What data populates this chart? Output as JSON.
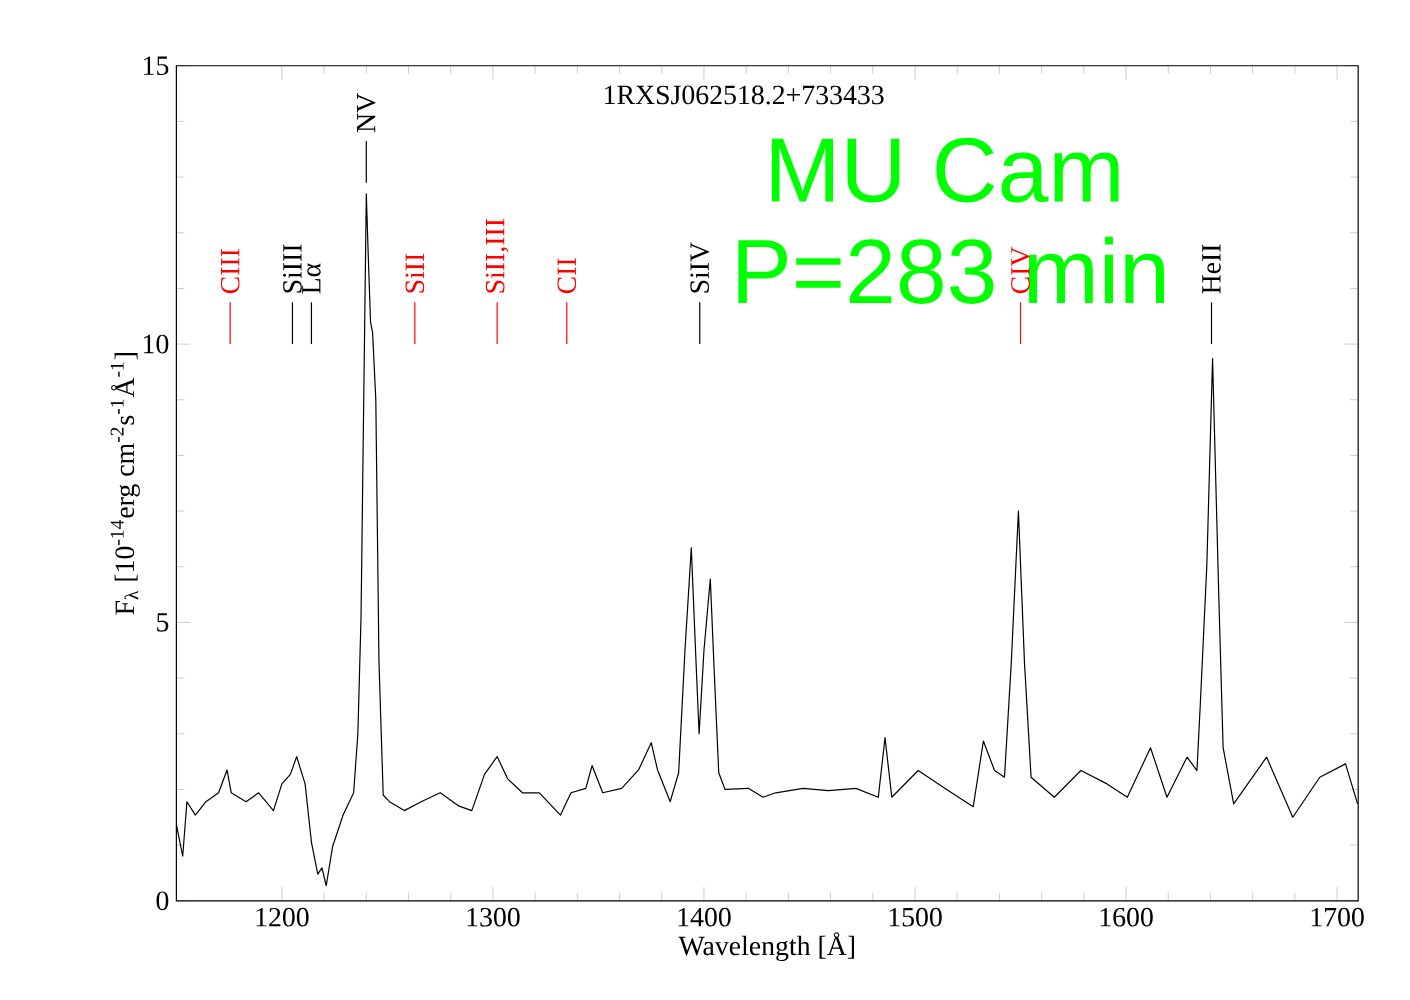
{
  "chart_data": {
    "type": "line",
    "title": "1RXSJ062518.2+733433",
    "xlabel": "Wavelength [Å]",
    "ylabel": "F$_{λ}$ [10$^{-14}$erg cm$^{-2}$s$^{-1}$Å$^{-1}$]",
    "xlim": [
      1150,
      1710
    ],
    "ylim": [
      0,
      15
    ],
    "xticks": [
      1200,
      1300,
      1400,
      1500,
      1600,
      1700
    ],
    "yticks": [
      0,
      5,
      10,
      15
    ],
    "color": "#000000",
    "marker": "none",
    "line_style": "solid",
    "x": [
      1150,
      1153,
      1155,
      1159,
      1164,
      1170,
      1174,
      1176,
      1183,
      1189,
      1196,
      1200,
      1204,
      1207,
      1211,
      1214,
      1217,
      1219,
      1221,
      1224,
      1229,
      1234,
      1236,
      1237.5,
      1240,
      1241,
      1242,
      1243,
      1244.5,
      1246,
      1248,
      1251,
      1258,
      1266,
      1275,
      1284,
      1290,
      1296,
      1302,
      1307,
      1314,
      1322,
      1332,
      1337,
      1344,
      1347,
      1352,
      1361,
      1369,
      1375,
      1378,
      1384,
      1388,
      1391,
      1394,
      1396,
      1397.7,
      1400,
      1403,
      1405,
      1407,
      1410,
      1421,
      1428,
      1434,
      1447,
      1459,
      1472,
      1482.6,
      1485.8,
      1489,
      1501.5,
      1515.7,
      1527.6,
      1532.4,
      1537.7,
      1542.4,
      1545.6,
      1549,
      1551.9,
      1555,
      1566,
      1578.6,
      1591,
      1600.6,
      1611.6,
      1619.4,
      1628.9,
      1633.6,
      1635.2,
      1638.3,
      1641,
      1644,
      1646,
      1651,
      1666.6,
      1679,
      1691.8,
      1704,
      1709.7
    ],
    "values": [
      1.37,
      0.8,
      1.78,
      1.54,
      1.78,
      1.94,
      2.35,
      1.94,
      1.78,
      1.94,
      1.62,
      2.1,
      2.27,
      2.59,
      2.1,
      1.05,
      0.48,
      0.59,
      0.27,
      0.97,
      1.54,
      1.94,
      3.0,
      5.1,
      12.7,
      11.5,
      10.4,
      10.2,
      9.0,
      4.3,
      1.9,
      1.78,
      1.62,
      1.78,
      1.94,
      1.7,
      1.62,
      2.27,
      2.59,
      2.19,
      1.94,
      1.94,
      1.54,
      1.94,
      2.02,
      2.43,
      1.94,
      2.02,
      2.35,
      2.84,
      2.35,
      1.78,
      2.3,
      4.5,
      6.34,
      4.5,
      3.0,
      4.5,
      5.78,
      4.0,
      2.3,
      2.0,
      2.02,
      1.86,
      1.94,
      2.02,
      1.98,
      2.02,
      1.86,
      2.93,
      1.86,
      2.34,
      1.98,
      1.69,
      2.87,
      2.34,
      2.22,
      4.26,
      7.0,
      4.26,
      2.22,
      1.86,
      2.34,
      2.1,
      1.86,
      2.75,
      1.86,
      2.58,
      2.34,
      3.54,
      6.04,
      9.74,
      5.4,
      2.75,
      1.74,
      2.58,
      1.5,
      2.22,
      2.46,
      1.74
    ],
    "ref_lines": [
      {
        "axis": "x",
        "value": 1175.5,
        "label": "CIII",
        "color": "#ff0000"
      },
      {
        "axis": "x",
        "value": 1205,
        "label": "SiIII",
        "color": "#000000"
      },
      {
        "axis": "x",
        "value": 1214,
        "label": "Lα",
        "color": "#000000"
      },
      {
        "axis": "x",
        "value": 1240,
        "label": "NV",
        "color": "#000000"
      },
      {
        "axis": "x",
        "value": 1263,
        "label": "SiII",
        "color": "#ff0000"
      },
      {
        "axis": "x",
        "value": 1302,
        "label": "SiII,III",
        "color": "#ff0000"
      },
      {
        "axis": "x",
        "value": 1335,
        "label": "CII",
        "color": "#ff0000"
      },
      {
        "axis": "x",
        "value": 1398,
        "label": "SiIV",
        "color": "#000000"
      },
      {
        "axis": "x",
        "value": 1550,
        "label": "CIV",
        "color": "#ff0000"
      },
      {
        "axis": "x",
        "value": 1640.5,
        "label": "HeII",
        "color": "#000000"
      }
    ],
    "annotations": [
      "MU Cam",
      "P=283 min"
    ]
  }
}
